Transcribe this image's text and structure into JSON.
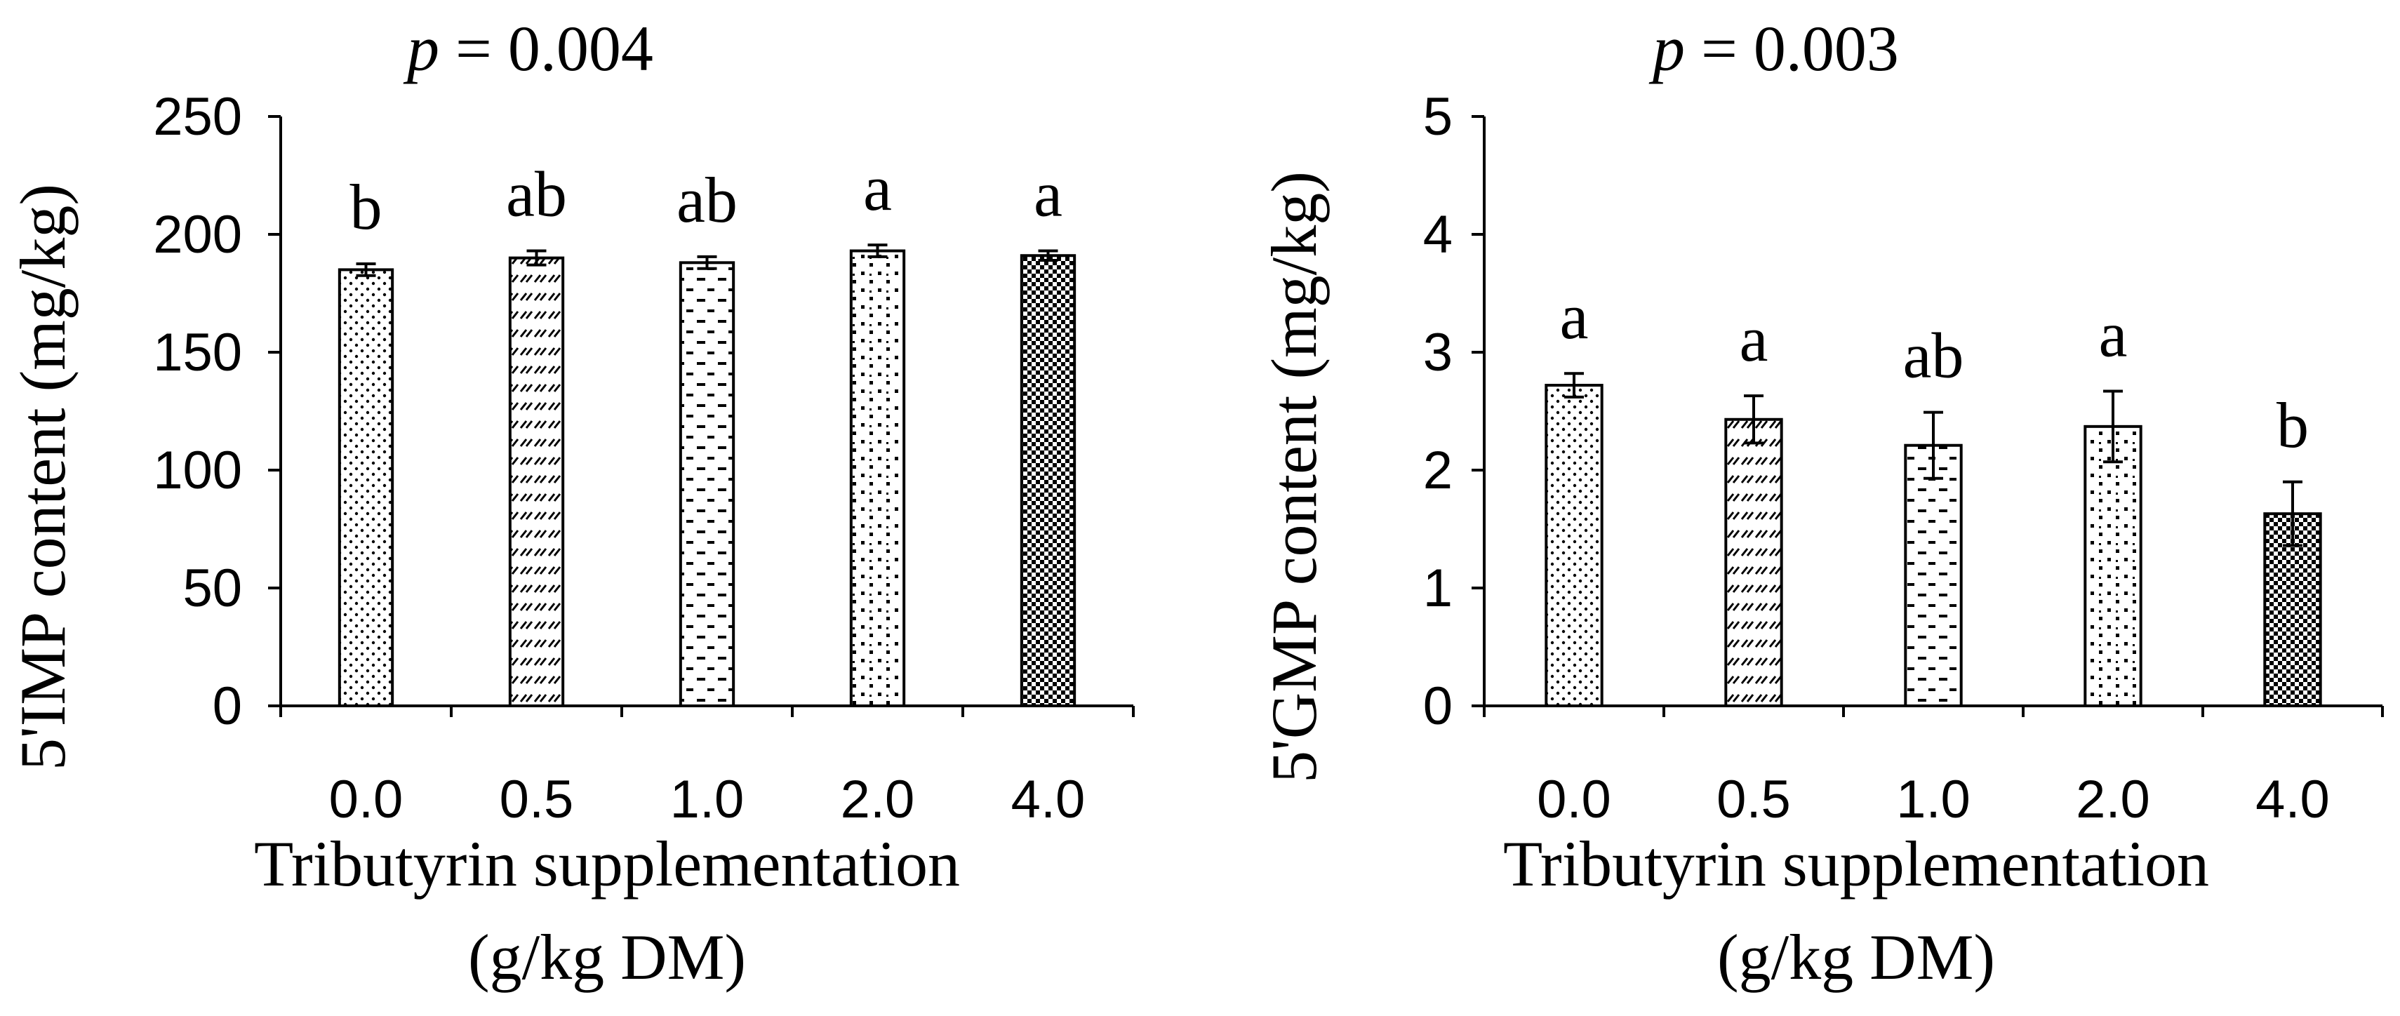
{
  "chart_data": [
    {
      "type": "bar",
      "p_label": "p",
      "p_value": " = 0.004",
      "categories": [
        "0.0",
        "0.5",
        "1.0",
        "2.0",
        "4.0"
      ],
      "values": [
        185,
        190,
        188,
        193,
        191
      ],
      "errors": [
        2.5,
        3,
        2.5,
        2.5,
        2
      ],
      "letters": [
        "b",
        "ab",
        "ab",
        "a",
        "a"
      ],
      "patterns": [
        "dots",
        "diagonal",
        "dashes",
        "crosses",
        "checker"
      ],
      "ylabel": "5'IMP content (mg/kg)",
      "xlabel_line1": "Tributyrin supplementation",
      "xlabel_line2": "(g/kg DM)",
      "ylim": [
        0,
        250
      ],
      "yticks": [
        0,
        50,
        100,
        150,
        200,
        250
      ]
    },
    {
      "type": "bar",
      "p_label": "p",
      "p_value": " = 0.003",
      "categories": [
        "0.0",
        "0.5",
        "1.0",
        "2.0",
        "4.0"
      ],
      "values": [
        2.72,
        2.43,
        2.21,
        2.37,
        1.63
      ],
      "errors": [
        0.1,
        0.2,
        0.28,
        0.3,
        0.27
      ],
      "letters": [
        "a",
        "a",
        "ab",
        "a",
        "b"
      ],
      "patterns": [
        "dots",
        "diagonal",
        "dashes",
        "crosses",
        "checker"
      ],
      "ylabel": "5'GMP content (mg/kg)",
      "xlabel_line1": "Tributyrin supplementation",
      "xlabel_line2": "(g/kg DM)",
      "ylim": [
        0,
        5
      ],
      "yticks": [
        0,
        1,
        2,
        3,
        4,
        5
      ]
    }
  ]
}
